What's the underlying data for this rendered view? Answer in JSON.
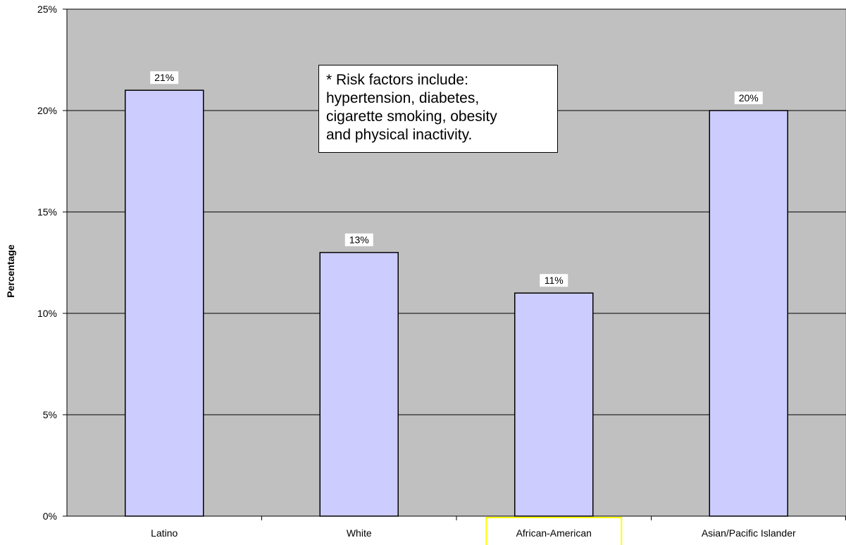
{
  "chart_data": {
    "type": "bar",
    "categories": [
      "Latino",
      "White",
      "African-American",
      "Asian/Pacific Islander"
    ],
    "values": [
      21,
      13,
      11,
      20
    ],
    "data_labels": [
      "21%",
      "13%",
      "11%",
      "20%"
    ],
    "ylabel": "Percentage",
    "ylim": [
      0,
      25
    ],
    "yticks": [
      "0%",
      "5%",
      "10%",
      "15%",
      "20%",
      "25%"
    ],
    "grid": true,
    "highlighted_category": "African-American",
    "colors": {
      "plot_background": "#c0c0c0",
      "bar_fill": "#ccccff",
      "bar_stroke": "#000000",
      "gridline": "#000000",
      "highlight_box": "#ffff00"
    }
  },
  "annotation": {
    "lines": [
      "* Risk factors include:",
      "hypertension, diabetes,",
      "cigarette smoking, obesity",
      "and physical inactivity."
    ]
  }
}
